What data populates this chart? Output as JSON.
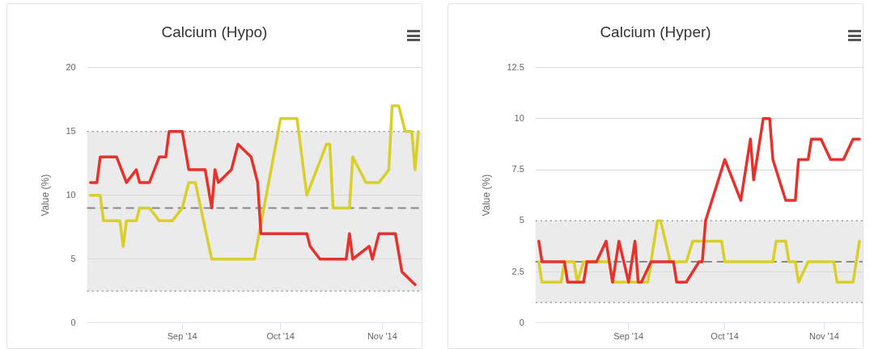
{
  "chart_data": [
    {
      "type": "line",
      "title": "Calcium (Hypo)",
      "ylabel": "Value (%)",
      "xlim": [
        "2014-08-03",
        "2014-11-13"
      ],
      "xticks": [
        {
          "value": "2014-09-01",
          "label": "Sep '14"
        },
        {
          "value": "2014-10-01",
          "label": "Oct '14"
        },
        {
          "value": "2014-11-01",
          "label": "Nov '14"
        }
      ],
      "ylim": [
        0,
        20
      ],
      "yticks": [
        0,
        5,
        10,
        15,
        20
      ],
      "grid": "y",
      "legend": false,
      "marker": "none",
      "line_style": "solid",
      "bands": [
        {
          "axis": "y",
          "from": 2.5,
          "to": 15,
          "color": "#ebebeb"
        }
      ],
      "ref_lines": [
        {
          "axis": "y",
          "value": 9,
          "color": "#888888",
          "line_style": "dashed"
        },
        {
          "axis": "y",
          "value": 15,
          "color": "#999999",
          "line_style": "dotted"
        },
        {
          "axis": "y",
          "value": 2.5,
          "color": "#999999",
          "line_style": "dotted"
        }
      ],
      "series": [
        {
          "color": "#e8312a",
          "x": [
            "2014-08-04",
            "2014-08-06",
            "2014-08-07",
            "2014-08-12",
            "2014-08-15",
            "2014-08-18",
            "2014-08-19",
            "2014-08-22",
            "2014-08-25",
            "2014-08-27",
            "2014-08-28",
            "2014-09-01",
            "2014-09-03",
            "2014-09-08",
            "2014-09-10",
            "2014-09-11",
            "2014-09-12",
            "2014-09-16",
            "2014-09-18",
            "2014-09-22",
            "2014-09-24",
            "2014-09-25",
            "2014-10-09",
            "2014-10-10",
            "2014-10-13",
            "2014-10-21",
            "2014-10-22",
            "2014-10-23",
            "2014-10-28",
            "2014-10-29",
            "2014-10-31",
            "2014-11-05",
            "2014-11-07",
            "2014-11-11"
          ],
          "values": [
            11,
            11,
            13,
            13,
            11,
            12,
            11,
            11,
            13,
            13,
            15,
            15,
            12,
            12,
            9,
            12,
            11,
            12,
            14,
            13,
            11,
            7,
            7,
            6,
            5,
            5,
            7,
            5,
            6,
            5,
            7,
            7,
            4,
            3
          ]
        },
        {
          "color": "#d9cf2a",
          "x": [
            "2014-08-04",
            "2014-08-07",
            "2014-08-08",
            "2014-08-13",
            "2014-08-14",
            "2014-08-15",
            "2014-08-18",
            "2014-08-19",
            "2014-08-22",
            "2014-08-25",
            "2014-08-29",
            "2014-09-01",
            "2014-09-03",
            "2014-09-05",
            "2014-09-10",
            "2014-09-23",
            "2014-10-01",
            "2014-10-06",
            "2014-10-09",
            "2014-10-15",
            "2014-10-16",
            "2014-10-17",
            "2014-10-22",
            "2014-10-23",
            "2014-10-27",
            "2014-10-31",
            "2014-11-03",
            "2014-11-04",
            "2014-11-06",
            "2014-11-08",
            "2014-11-10",
            "2014-11-11",
            "2014-11-12"
          ],
          "values": [
            10,
            10,
            8,
            8,
            6,
            8,
            8,
            9,
            9,
            8,
            8,
            9,
            11,
            11,
            5,
            5,
            16,
            16,
            10,
            14,
            14,
            9,
            9,
            13,
            11,
            11,
            12,
            17,
            17,
            15,
            15,
            12,
            15
          ]
        }
      ]
    },
    {
      "type": "line",
      "title": "Calcium (Hyper)",
      "ylabel": "Value (%)",
      "xlim": [
        "2014-08-03",
        "2014-11-13"
      ],
      "xticks": [
        {
          "value": "2014-09-01",
          "label": "Sep '14"
        },
        {
          "value": "2014-10-01",
          "label": "Oct '14"
        },
        {
          "value": "2014-11-01",
          "label": "Nov '14"
        }
      ],
      "ylim": [
        0,
        12.5
      ],
      "yticks": [
        0,
        2.5,
        5,
        7.5,
        10,
        12.5
      ],
      "grid": "y",
      "legend": false,
      "marker": "none",
      "line_style": "solid",
      "bands": [
        {
          "axis": "y",
          "from": 1,
          "to": 5,
          "color": "#ebebeb"
        }
      ],
      "ref_lines": [
        {
          "axis": "y",
          "value": 3,
          "color": "#888888",
          "line_style": "dashed"
        },
        {
          "axis": "y",
          "value": 5,
          "color": "#999999",
          "line_style": "dotted"
        },
        {
          "axis": "y",
          "value": 1,
          "color": "#999999",
          "line_style": "dotted"
        }
      ],
      "series": [
        {
          "color": "#e8312a",
          "x": [
            "2014-08-04",
            "2014-08-05",
            "2014-08-12",
            "2014-08-13",
            "2014-08-18",
            "2014-08-19",
            "2014-08-22",
            "2014-08-25",
            "2014-08-27",
            "2014-08-29",
            "2014-09-01",
            "2014-09-03",
            "2014-09-04",
            "2014-09-05",
            "2014-09-08",
            "2014-09-15",
            "2014-09-16",
            "2014-09-19",
            "2014-09-23",
            "2014-09-24",
            "2014-09-25",
            "2014-10-01",
            "2014-10-06",
            "2014-10-09",
            "2014-10-10",
            "2014-10-13",
            "2014-10-15",
            "2014-10-16",
            "2014-10-20",
            "2014-10-23",
            "2014-10-24",
            "2014-10-27",
            "2014-10-28",
            "2014-10-31",
            "2014-11-03",
            "2014-11-07",
            "2014-11-10",
            "2014-11-12"
          ],
          "values": [
            4,
            3,
            3,
            2,
            2,
            3,
            3,
            4,
            2,
            4,
            2,
            4,
            2,
            2,
            3,
            3,
            2,
            2,
            3,
            3,
            5,
            8,
            6,
            9,
            7,
            10,
            10,
            8,
            6,
            6,
            8,
            8,
            9,
            9,
            8,
            8,
            9,
            9
          ]
        },
        {
          "color": "#d9cf2a",
          "x": [
            "2014-08-04",
            "2014-08-05",
            "2014-08-11",
            "2014-08-12",
            "2014-08-15",
            "2014-08-16",
            "2014-08-18",
            "2014-08-20",
            "2014-08-26",
            "2014-08-27",
            "2014-09-07",
            "2014-09-10",
            "2014-09-11",
            "2014-09-14",
            "2014-09-19",
            "2014-09-21",
            "2014-09-30",
            "2014-10-01",
            "2014-10-16",
            "2014-10-17",
            "2014-10-20",
            "2014-10-21",
            "2014-10-23",
            "2014-10-24",
            "2014-10-27",
            "2014-11-04",
            "2014-11-05",
            "2014-11-10",
            "2014-11-12"
          ],
          "values": [
            3,
            2,
            2,
            3,
            3,
            2,
            3,
            3,
            3,
            2,
            2,
            5,
            5,
            3,
            3,
            4,
            4,
            3,
            3,
            4,
            4,
            3,
            3,
            2,
            3,
            3,
            2,
            2,
            4
          ]
        }
      ]
    }
  ]
}
